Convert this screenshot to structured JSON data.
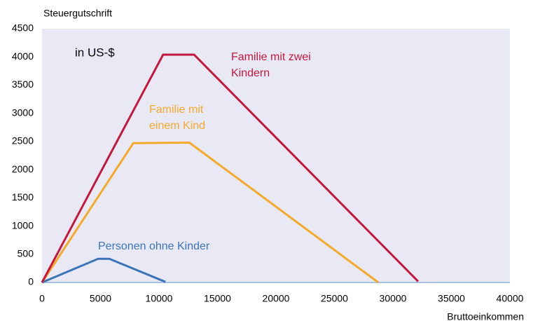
{
  "chart_data": {
    "type": "line",
    "y_label": "Steuergutschrift",
    "x_label": "Bruttoeinkommen",
    "annotation": "in US-$",
    "xlim": [
      0,
      40000
    ],
    "xticks": [
      0,
      5000,
      10000,
      15000,
      20000,
      25000,
      30000,
      35000,
      40000
    ],
    "ylim": [
      0,
      4500
    ],
    "yticks": [
      0,
      500,
      1000,
      1500,
      2000,
      2500,
      3000,
      3500,
      4000,
      4500
    ],
    "grid": false,
    "series": [
      {
        "name": "Personen ohne Kinder",
        "color": "#3d74b8",
        "x": [
          0,
          4800,
          5750,
          10550
        ],
        "values": [
          0,
          420,
          420,
          10
        ]
      },
      {
        "name": "Familie mit einem Kind",
        "color": "#f4a92a",
        "x": [
          0,
          7800,
          12600,
          28750
        ],
        "values": [
          0,
          2470,
          2480,
          0
        ]
      },
      {
        "name": "Familie mit zwei Kindern",
        "color": "#c4173c",
        "x": [
          0,
          10350,
          13000,
          32150
        ],
        "values": [
          0,
          4040,
          4040,
          20
        ]
      }
    ]
  }
}
